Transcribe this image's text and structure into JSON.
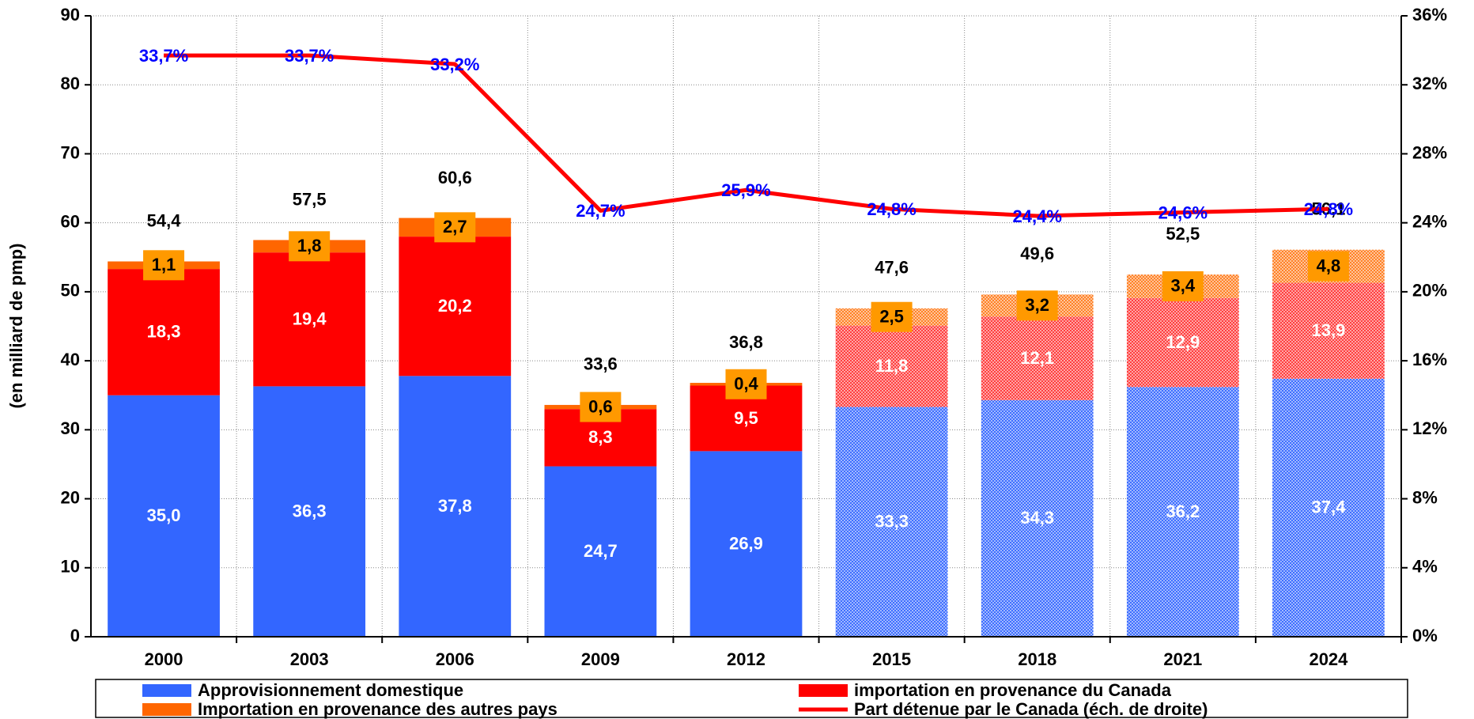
{
  "chart_data": {
    "type": "bar",
    "stacked": true,
    "y_label": "(en milliard de pmp)",
    "categories": [
      "2000",
      "2003",
      "2006",
      "2009",
      "2012",
      "2015",
      "2018",
      "2021",
      "2024"
    ],
    "hatched": [
      false,
      false,
      false,
      false,
      false,
      true,
      true,
      true,
      true
    ],
    "series": [
      {
        "name": "Approvisionnement domestique",
        "color": "#3366ff",
        "label_color": "#ffffff",
        "values": [
          35.0,
          36.3,
          37.8,
          24.7,
          26.9,
          33.3,
          34.3,
          36.2,
          37.4
        ],
        "value_labels": [
          "35,0",
          "36,3",
          "37,8",
          "24,7",
          "26,9",
          "33,3",
          "34,3",
          "36,2",
          "37,4"
        ]
      },
      {
        "name": "importation en provenance du Canada",
        "color": "#ff0000",
        "label_color": "#ffffff",
        "values": [
          18.3,
          19.4,
          20.2,
          8.3,
          9.5,
          11.8,
          12.1,
          12.9,
          13.9
        ],
        "value_labels": [
          "18,3",
          "19,4",
          "20,2",
          "8,3",
          "9,5",
          "11,8",
          "12,1",
          "12,9",
          "13,9"
        ]
      },
      {
        "name": "Importation en provenance des autres pays",
        "color": "#ff6600",
        "label_color": "#000000",
        "label_box": "#ff9900",
        "values": [
          1.1,
          1.8,
          2.7,
          0.6,
          0.4,
          2.5,
          3.2,
          3.4,
          4.8
        ],
        "value_labels": [
          "1,1",
          "1,8",
          "2,7",
          "0,6",
          "0,4",
          "2,5",
          "3,2",
          "3,4",
          "4,8"
        ]
      },
      {
        "name": "Part détenue par le Canada (éch. de droite)",
        "type": "line",
        "axis": "y2",
        "color": "#ff0000",
        "label_color": "#0000ff",
        "values": [
          33.7,
          33.7,
          33.2,
          24.7,
          25.9,
          24.8,
          24.4,
          24.6,
          24.8
        ],
        "value_labels": [
          "33,7%",
          "33,7%",
          "33,2%",
          "24,7%",
          "25,9%",
          "24,8%",
          "24,4%",
          "24,6%",
          "24,8%"
        ]
      }
    ],
    "totals": [
      54.4,
      57.5,
      60.6,
      33.6,
      36.8,
      47.6,
      49.6,
      52.5,
      56.1
    ],
    "total_labels": [
      "54,4",
      "57,5",
      "60,6",
      "33,6",
      "36,8",
      "47,6",
      "49,6",
      "52,5",
      "56,1"
    ],
    "ylim": [
      0,
      90
    ],
    "yticks": [
      0,
      10,
      20,
      30,
      40,
      50,
      60,
      70,
      80,
      90
    ],
    "y2lim": [
      0,
      36
    ],
    "y2ticks": [
      {
        "value": 0,
        "label": "0%"
      },
      {
        "value": 4,
        "label": "4%"
      },
      {
        "value": 8,
        "label": "8%"
      },
      {
        "value": 12,
        "label": "12%"
      },
      {
        "value": 16,
        "label": "16%"
      },
      {
        "value": 20,
        "label": "20%"
      },
      {
        "value": 24,
        "label": "24%"
      },
      {
        "value": 28,
        "label": "28%"
      },
      {
        "value": 32,
        "label": "32%"
      },
      {
        "value": 36,
        "label": "36%"
      }
    ],
    "grid": true,
    "legend": "bottom"
  }
}
